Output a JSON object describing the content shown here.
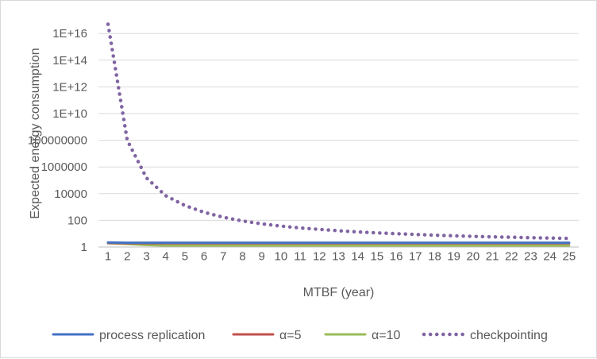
{
  "chart_data": {
    "type": "line",
    "title": "",
    "xlabel": "MTBF (year)",
    "ylabel": "Expected energy consumption",
    "y_scale": "log",
    "ylim": [
      1,
      1e+17
    ],
    "y_ticks": [
      "1",
      "100",
      "10000",
      "1000000",
      "100000000",
      "1E+10",
      "1E+12",
      "1E+14",
      "1E+16"
    ],
    "x": [
      1,
      2,
      3,
      4,
      5,
      6,
      7,
      8,
      9,
      10,
      11,
      12,
      13,
      14,
      15,
      16,
      17,
      18,
      19,
      20,
      21,
      22,
      23,
      24,
      25
    ],
    "x_ticks": [
      "1",
      "2",
      "3",
      "4",
      "5",
      "6",
      "7",
      "8",
      "9",
      "10",
      "11",
      "12",
      "13",
      "14",
      "15",
      "16",
      "17",
      "18",
      "19",
      "20",
      "21",
      "22",
      "23",
      "24",
      "25"
    ],
    "grid": "horizontal",
    "legend_position": "bottom",
    "series": [
      {
        "name": "process replication",
        "color": "#4472c4",
        "style": "solid",
        "values": [
          2.2,
          2.1,
          2.1,
          2.1,
          2.1,
          2.1,
          2.1,
          2.1,
          2.1,
          2.1,
          2.1,
          2.1,
          2.1,
          2.1,
          2.1,
          2.1,
          2.1,
          2.1,
          2.1,
          2.1,
          2.1,
          2.1,
          2.1,
          2.1,
          2.1
        ]
      },
      {
        "name": "α=5",
        "color": "#c0504d",
        "style": "solid",
        "values": [
          2.0,
          1.9,
          1.9,
          1.9,
          1.9,
          1.9,
          1.9,
          1.9,
          1.9,
          1.9,
          1.9,
          1.9,
          1.9,
          1.9,
          1.9,
          1.9,
          1.9,
          1.9,
          1.9,
          1.9,
          1.9,
          1.9,
          1.9,
          1.9,
          1.9
        ]
      },
      {
        "name": "α=10",
        "color": "#9bbb59",
        "style": "solid",
        "values": [
          1.9,
          1.7,
          1.4,
          1.3,
          1.3,
          1.3,
          1.3,
          1.3,
          1.3,
          1.3,
          1.3,
          1.3,
          1.3,
          1.3,
          1.3,
          1.3,
          1.3,
          1.3,
          1.3,
          1.3,
          1.3,
          1.3,
          1.3,
          1.3,
          1.3
        ]
      },
      {
        "name": "checkpointing",
        "color": "#8064a2",
        "style": "dotted",
        "values": [
          5e+16,
          100000000.0,
          150000.0,
          7000,
          1300,
          400,
          170,
          90,
          55,
          37,
          27,
          21,
          16.5,
          13.5,
          11.5,
          10,
          8.7,
          7.7,
          6.9,
          6.3,
          5.8,
          5.4,
          5.0,
          4.7,
          4.4
        ]
      }
    ]
  }
}
